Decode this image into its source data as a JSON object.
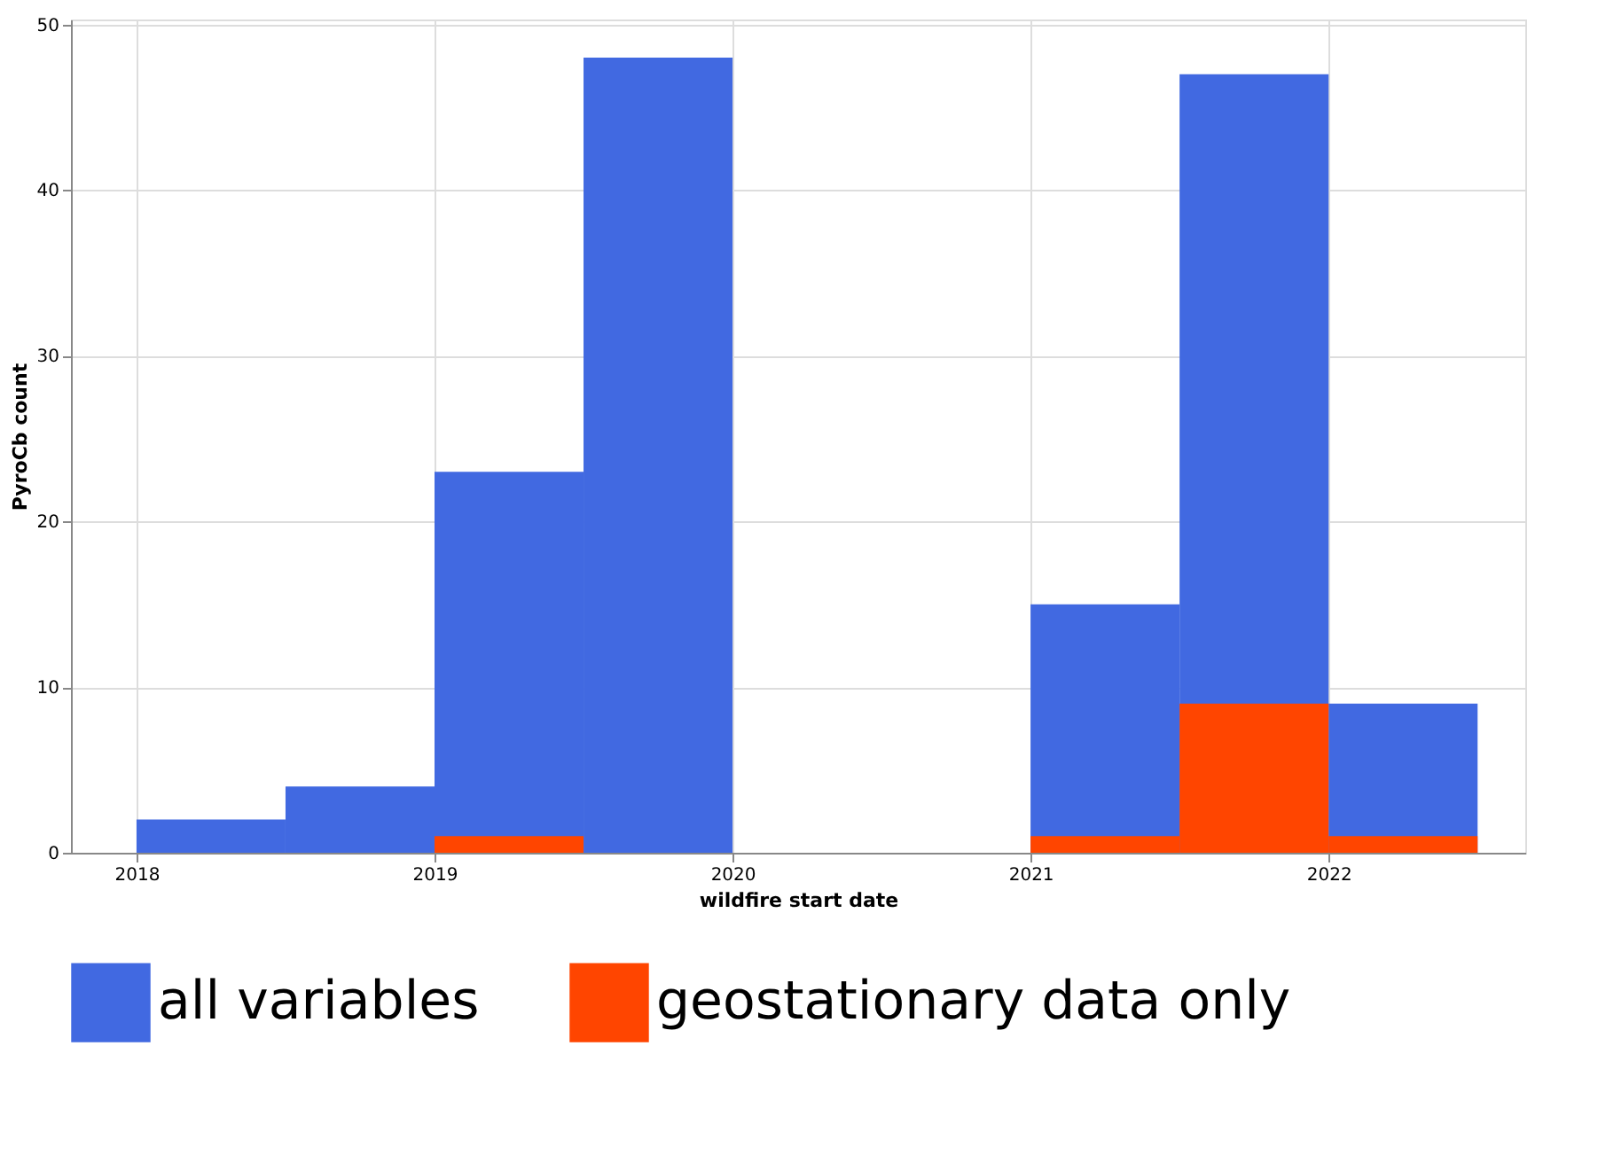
{
  "chart_data": {
    "type": "histogram",
    "xlabel": "wildfire start date",
    "ylabel": "PyroCb count",
    "bins": [
      2018,
      2018.5,
      2019,
      2019.5,
      2020,
      2020.5,
      2021,
      2021.5,
      2022,
      2022.5
    ],
    "series": [
      {
        "name": "all variables",
        "color": "#4169e1",
        "values": [
          2,
          4,
          23,
          48,
          0,
          0,
          15,
          47,
          9
        ]
      },
      {
        "name": "geostationary data only",
        "color": "#ff4500",
        "values": [
          0,
          0,
          1,
          0,
          0,
          0,
          1,
          9,
          1
        ]
      }
    ],
    "xlim": [
      2017.78,
      2022.66
    ],
    "xticks": [
      2018,
      2019,
      2020,
      2021,
      2022
    ],
    "ylim": [
      0,
      50.3
    ],
    "yticks": [
      0,
      10,
      20,
      30,
      40,
      50
    ],
    "grid": true,
    "legend": "bottom"
  }
}
